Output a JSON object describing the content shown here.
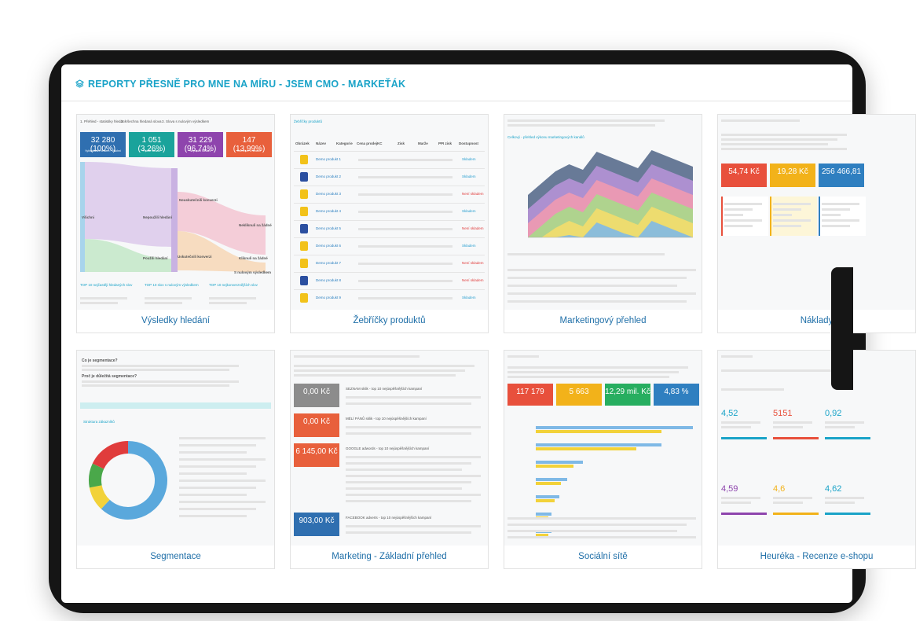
{
  "header": {
    "title": "REPORTY PŘESNĚ PRO MNE NA MÍRU - JSEM CMO - MARKEŤÁK"
  },
  "cards": [
    {
      "caption": "Výsledky hledání",
      "tabs": [
        "1. Přehled - statistiky hledání",
        "2. Všechna hledaná slova",
        "3. Slova s nulovým výsledkem"
      ],
      "tiles": [
        {
          "value": "32 280 (100%)",
          "label": "Vyhledávání celkem - Všichni",
          "color": "#2f6fb0"
        },
        {
          "value": "1 051 (3,26%)",
          "label": "Použili hledání",
          "color": "#1aa39b"
        },
        {
          "value": "31 229 (96,74%)",
          "label": "Nepoužili hledání",
          "color": "#8e44ad"
        },
        {
          "value": "147 (13,99%)",
          "label": "Konverze z hledání",
          "color": "#e8603c"
        }
      ],
      "nodes": [
        "Všichni",
        "Nepoužili hledání",
        "Použili hledání",
        "Neuskutečnili konverzi",
        "Uskutečnili konverzi",
        "Nekliknuli na žádné",
        "Kliknuli na žádné",
        "S nulovým výsledkem"
      ],
      "panels": [
        "TOP 10 nejčastěji hledaných slov",
        "TOP 10 slov s nulovým výsledkem",
        "TOP 10 nejkonverznějších slov"
      ]
    },
    {
      "caption": "Žebříčky produktů",
      "heading": "Žebříčky produktů",
      "columns": [
        "Obrázek",
        "Název",
        "Kategorie",
        "Cena prodej",
        "KC",
        "Zisk",
        "Marže",
        "PPI zisk",
        "Dostupnost"
      ],
      "products": [
        {
          "name": "Demo produkt 1",
          "stock": "Skladem"
        },
        {
          "name": "Demo produkt 2",
          "stock": "Skladem"
        },
        {
          "name": "Demo produkt 3",
          "stock": "Není skladem"
        },
        {
          "name": "Demo produkt 4",
          "stock": "Skladem"
        },
        {
          "name": "Demo produkt 5",
          "stock": "Není skladem"
        },
        {
          "name": "Demo produkt 6",
          "stock": "Skladem"
        },
        {
          "name": "Demo produkt 7",
          "stock": "Není skladem"
        },
        {
          "name": "Demo produkt 8",
          "stock": "Není skladem"
        },
        {
          "name": "Demo produkt 9",
          "stock": "Skladem"
        }
      ]
    },
    {
      "caption": "Marketingový přehled",
      "heading": "Celkový - přehled výkonu marketingových kanálů"
    },
    {
      "caption": "Náklady",
      "tiles": [
        {
          "value": "54,74 Kč",
          "color": "#e8503c"
        },
        {
          "value": "19,28 Kč",
          "color": "#f2b21a"
        },
        {
          "value": "256 466,81",
          "color": "#2f7fc0"
        }
      ]
    },
    {
      "caption": "Segmentace",
      "question": "Co je segmentace?",
      "question2": "Proč je důležitá segmentace?",
      "heading": "Struktura zákazníků"
    },
    {
      "caption": "Marketing - Základní přehled",
      "tiles": [
        {
          "value": "0,00 Kč",
          "color": "#8c8c8c"
        },
        {
          "value": "0,00 Kč",
          "color": "#e8603c"
        },
        {
          "value": "6 145,00 Kč",
          "color": "#e8603c"
        },
        {
          "value": "903,00 Kč",
          "color": "#2f6fb0"
        }
      ],
      "sections": [
        "SEZNAM sklik - top 10 nejúspěšnějších kampaní",
        "MÉLÍ PÁNŮ sklik - top 10 nejúspěšnějších kampaní",
        "GOOGLE adwords - top 10 nejúspěšnějších kampaní",
        "FACEBOOK adverts - top 10 nejúspěšnějších kampaní"
      ]
    },
    {
      "caption": "Sociální sítě",
      "tiles": [
        {
          "value": "117 179",
          "color": "#e8503c"
        },
        {
          "value": "5 663",
          "color": "#f2b21a"
        },
        {
          "value": "12,29 mil. Kč",
          "color": "#27ae60"
        },
        {
          "value": "4,83 %",
          "color": "#2f7fc0"
        }
      ]
    },
    {
      "caption": "Heuréka - Recenze e-shopu",
      "scores": [
        {
          "value": "4,52",
          "color": "#1aa3c8"
        },
        {
          "value": "5151",
          "color": "#e8503c"
        },
        {
          "value": "0,92",
          "color": "#1aa3c8"
        },
        {
          "value": "4,59",
          "color": "#8e44ad"
        },
        {
          "value": "4,6",
          "color": "#f2b21a"
        },
        {
          "value": "4,62",
          "color": "#1aa3c8"
        }
      ]
    }
  ]
}
